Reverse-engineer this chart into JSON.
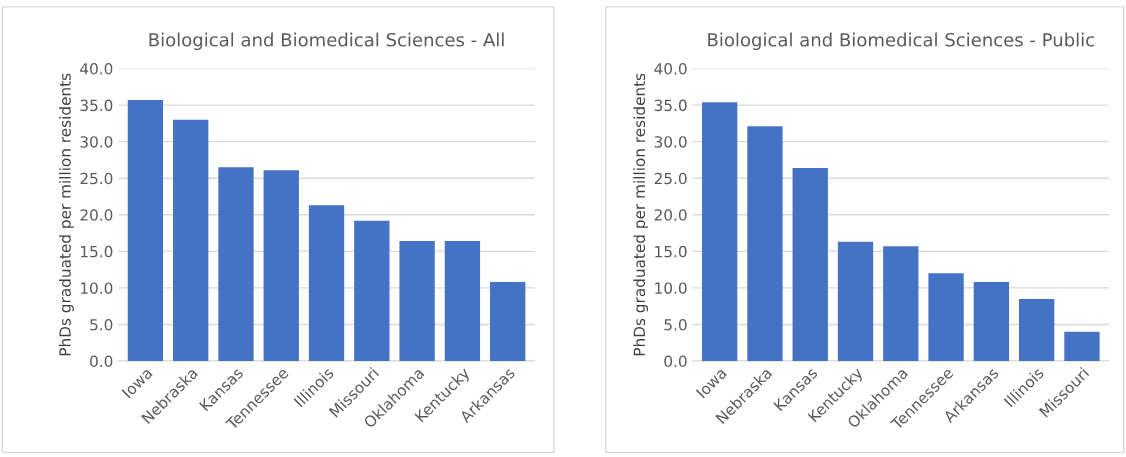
{
  "chart_data": [
    {
      "type": "bar",
      "title": "Biological and Biomedical Sciences - All",
      "ylabel": "PhDs graduated per million residents",
      "categories": [
        "Iowa",
        "Nebraska",
        "Kansas",
        "Tennessee",
        "Illinois",
        "Missouri",
        "Oklahoma",
        "Kentucky",
        "Arkansas"
      ],
      "values": [
        35.7,
        33.0,
        26.5,
        26.1,
        21.3,
        19.2,
        16.4,
        16.4,
        10.8
      ],
      "color": "#4472c4",
      "ylim": [
        0,
        40
      ],
      "yticks": [
        {
          "value": 0,
          "label": "0.0"
        },
        {
          "value": 5,
          "label": "5.0"
        },
        {
          "value": 10,
          "label": "10.0"
        },
        {
          "value": 15,
          "label": "15.0"
        },
        {
          "value": 20,
          "label": "20.0"
        },
        {
          "value": 25,
          "label": "25.0"
        },
        {
          "value": 30,
          "label": "30.0"
        },
        {
          "value": 35,
          "label": "35.0"
        },
        {
          "value": 40,
          "label": "40.0"
        }
      ],
      "grid": "y"
    },
    {
      "type": "bar",
      "title": "Biological and Biomedical Sciences - Public",
      "ylabel": "PhDs graduated per million residents",
      "categories": [
        "Iowa",
        "Nebraska",
        "Kansas",
        "Kentucky",
        "Oklahoma",
        "Tennessee",
        "Arkansas",
        "Illinois",
        "Missouri"
      ],
      "values": [
        35.4,
        32.1,
        26.4,
        16.3,
        15.7,
        12.0,
        10.8,
        8.5,
        4.0
      ],
      "color": "#4472c4",
      "ylim": [
        0,
        40
      ],
      "yticks": [
        {
          "value": 0,
          "label": "0.0"
        },
        {
          "value": 5,
          "label": "5.0"
        },
        {
          "value": 10,
          "label": "10.0"
        },
        {
          "value": 15,
          "label": "15.0"
        },
        {
          "value": 20,
          "label": "20.0"
        },
        {
          "value": 25,
          "label": "25.0"
        },
        {
          "value": 30,
          "label": "30.0"
        },
        {
          "value": 35,
          "label": "35.0"
        },
        {
          "value": 40,
          "label": "40.0"
        }
      ],
      "grid": "y"
    }
  ]
}
